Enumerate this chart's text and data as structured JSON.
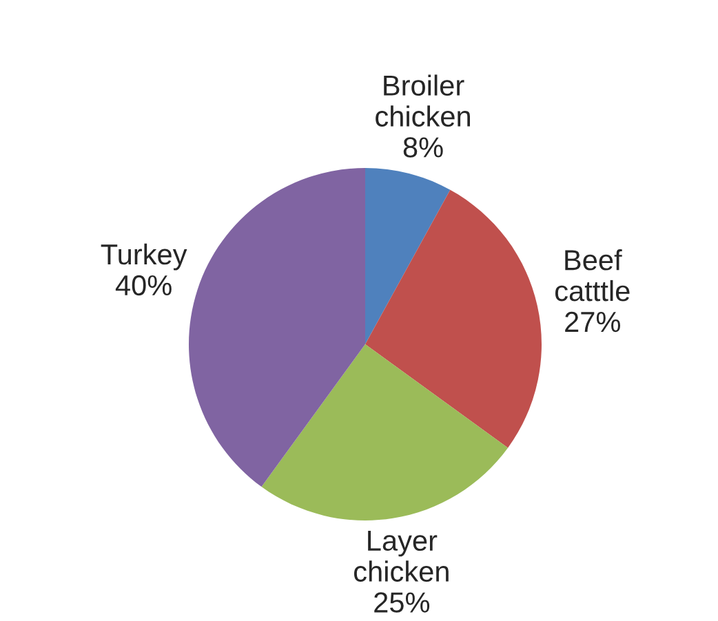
{
  "chart_data": {
    "type": "pie",
    "categories": [
      "Broiler chicken",
      "Beef catttle",
      "Layer chicken",
      "Turkey"
    ],
    "values": [
      8,
      27,
      25,
      40
    ],
    "value_labels": [
      "8%",
      "27%",
      "25%",
      "40%"
    ],
    "colors": [
      "#4f81bd",
      "#c0504d",
      "#9bbb59",
      "#8064a2"
    ]
  }
}
